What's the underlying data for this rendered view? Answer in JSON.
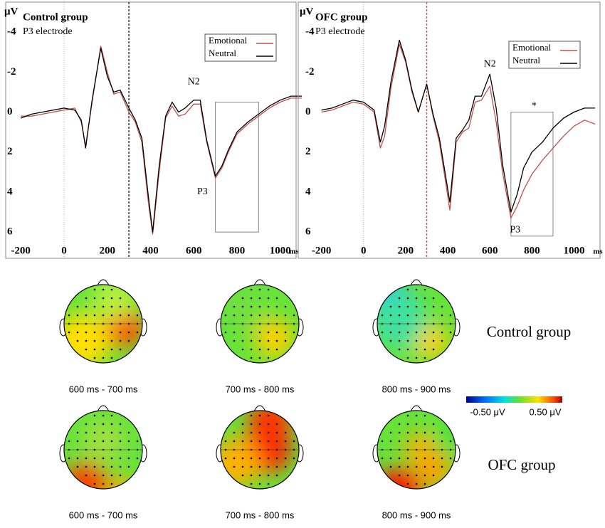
{
  "chart_data": [
    {
      "type": "line",
      "title": "Control group",
      "subtitle": "P3 electrode",
      "ylabel": "μV",
      "xlabel": "ms",
      "x": [
        -200,
        -150,
        -100,
        -50,
        0,
        50,
        80,
        100,
        130,
        170,
        200,
        230,
        260,
        300,
        330,
        360,
        390,
        410,
        440,
        470,
        500,
        530,
        560,
        600,
        630,
        660,
        700,
        730,
        760,
        800,
        850,
        900,
        950,
        1000,
        1050,
        1100
      ],
      "series": [
        {
          "name": "Emotional",
          "color": "#c0504d",
          "values": [
            0.2,
            0.2,
            0.1,
            0,
            -0.1,
            -0.2,
            0.5,
            1.7,
            -0.5,
            -3.3,
            -2,
            -0.9,
            -1,
            0,
            0.5,
            1.5,
            4.5,
            6.1,
            3,
            0.3,
            -0.3,
            0.2,
            0.1,
            -0.4,
            -0.4,
            1.5,
            3.3,
            2.8,
            2,
            1.1,
            0.6,
            0.2,
            -0.2,
            -0.5,
            -0.7,
            -0.7
          ]
        },
        {
          "name": "Neutral",
          "color": "#000000",
          "values": [
            0.3,
            0.1,
            0,
            -0.1,
            -0.2,
            -0.1,
            0.4,
            1.8,
            -0.6,
            -3.2,
            -1.8,
            -1,
            -1.1,
            -0.2,
            0.4,
            1.3,
            4.2,
            6,
            2.7,
            0.2,
            -0.5,
            0,
            -0.2,
            -0.6,
            -0.6,
            1.4,
            3.2,
            2.7,
            1.9,
            1,
            0.5,
            0.1,
            -0.3,
            -0.6,
            -0.8,
            -0.8
          ]
        }
      ],
      "xlim": [
        -250,
        1080
      ],
      "xticks": [
        -200,
        0,
        200,
        400,
        600,
        800,
        1000
      ],
      "ylim": [
        -5.5,
        6.6
      ],
      "yticks": [
        -4,
        -2,
        0,
        2,
        4,
        6
      ],
      "y_inverted": true,
      "reference_lines": [
        0,
        300
      ],
      "highlight": {
        "x": [
          700,
          900
        ],
        "y": [
          -0.5,
          6
        ]
      },
      "annotations": [
        {
          "text": "N2",
          "x": 600,
          "y": -1.5
        },
        {
          "text": "P3",
          "x": 640,
          "y": 4
        }
      ]
    },
    {
      "type": "line",
      "title": "OFC group",
      "subtitle": "P3 electrode",
      "ylabel": "μV",
      "xlabel": "ms",
      "x": [
        -200,
        -150,
        -100,
        -50,
        0,
        50,
        80,
        100,
        130,
        170,
        200,
        230,
        260,
        300,
        330,
        360,
        390,
        410,
        440,
        470,
        500,
        530,
        560,
        600,
        630,
        660,
        700,
        730,
        760,
        800,
        850,
        900,
        950,
        1000,
        1050,
        1100
      ],
      "series": [
        {
          "name": "Emotional",
          "color": "#c0504d",
          "values": [
            0,
            -0.1,
            -0.3,
            -0.5,
            -0.4,
            0,
            1.8,
            1.2,
            -1.2,
            -3.4,
            -2.5,
            -1,
            0,
            -1.4,
            0.2,
            1.5,
            3.5,
            4.9,
            1.5,
            1,
            0.8,
            -0.5,
            -0.6,
            -1.3,
            0.5,
            3,
            5.3,
            4.7,
            3.9,
            3.1,
            2.4,
            1.8,
            1.2,
            0.7,
            0.4,
            0.6
          ]
        },
        {
          "name": "Neutral",
          "color": "#000000",
          "values": [
            -0.1,
            -0.2,
            -0.4,
            -0.6,
            -0.5,
            -0.1,
            1.5,
            0.7,
            -1.5,
            -3.6,
            -2.6,
            -1.1,
            0,
            -1.4,
            0.1,
            1.3,
            3.2,
            4.5,
            1.3,
            0.9,
            0.4,
            -0.8,
            -0.8,
            -1.9,
            -0.2,
            2.6,
            5,
            4.1,
            2.8,
            2,
            1.5,
            0.8,
            0.3,
            0,
            -0.2,
            -0.2
          ]
        }
      ],
      "xlim": [
        -290,
        1130
      ],
      "xticks": [
        -200,
        0,
        200,
        400,
        600,
        800,
        1000
      ],
      "ylim": [
        -5.5,
        6.6
      ],
      "yticks": [
        -4,
        -2,
        0,
        2,
        4,
        6
      ],
      "y_inverted": true,
      "reference_lines": [
        0,
        300
      ],
      "highlight": {
        "x": [
          700,
          900
        ],
        "y": [
          0,
          6.2
        ]
      },
      "annotations": [
        {
          "text": "N2",
          "x": 600,
          "y": -2.4
        },
        {
          "text": "P3",
          "x": 720,
          "y": 5.9
        },
        {
          "text": "*",
          "x": 810,
          "y": -0.3
        }
      ]
    }
  ],
  "topomaps": {
    "row_labels": [
      "Control group",
      "OFC group"
    ],
    "time_labels": [
      "600 ms - 700 ms",
      "700 ms - 800 ms",
      "800 ms - 900 ms"
    ],
    "colorbar_labels": [
      "-0.50 μV",
      "0.50 μV"
    ]
  }
}
